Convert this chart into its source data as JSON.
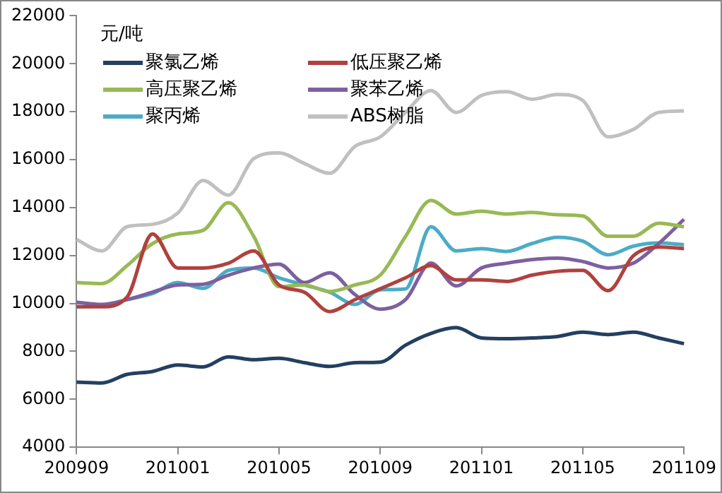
{
  "chart_data": {
    "type": "line",
    "ylabel": "元/吨",
    "categories": [
      "200909",
      null,
      null,
      null,
      "201001",
      null,
      null,
      null,
      "201005",
      null,
      null,
      null,
      "201009",
      null,
      null,
      null,
      "201101",
      null,
      null,
      null,
      "201105",
      null,
      null,
      null,
      "201109"
    ],
    "series": [
      {
        "name": "聚氯乙烯",
        "color": "#243f60",
        "values": [
          6720,
          6680,
          7040,
          7160,
          7430,
          7350,
          7770,
          7650,
          7710,
          7530,
          7370,
          7530,
          7550,
          8260,
          8750,
          8990,
          8560,
          8530,
          8560,
          8620,
          8800,
          8700,
          8800,
          8560,
          8320
        ]
      },
      {
        "name": "低压聚乙烯",
        "color": "#b0413e",
        "values": [
          9860,
          9860,
          10270,
          12900,
          11480,
          11480,
          11680,
          12190,
          10770,
          10470,
          9660,
          10160,
          10610,
          11070,
          11580,
          10980,
          10980,
          10920,
          11180,
          11340,
          11380,
          10530,
          11990,
          12350,
          12290
        ]
      },
      {
        "name": "高压聚乙烯",
        "color": "#98b954",
        "values": [
          10870,
          10830,
          11580,
          12500,
          12900,
          13050,
          14200,
          12800,
          10700,
          10770,
          10500,
          10770,
          11180,
          12800,
          14300,
          13730,
          13850,
          13730,
          13800,
          13700,
          13650,
          12800,
          12800,
          13350,
          13200
        ]
      },
      {
        "name": "聚苯乙烯",
        "color": "#7d60a0",
        "values": [
          10050,
          9960,
          10160,
          10470,
          10770,
          10800,
          11180,
          11480,
          11640,
          10870,
          11280,
          10370,
          9760,
          10160,
          11680,
          10730,
          11480,
          11680,
          11830,
          11890,
          11750,
          11480,
          11680,
          12500,
          13510
        ]
      },
      {
        "name": "聚丙烯",
        "color": "#4bacc6",
        "values": [
          9860,
          9900,
          10160,
          10410,
          10870,
          10630,
          11380,
          11480,
          11070,
          10770,
          10470,
          9960,
          10570,
          10610,
          13200,
          12190,
          12290,
          12170,
          12500,
          12760,
          12600,
          12030,
          12390,
          12520,
          12450
        ]
      },
      {
        "name": "ABS树脂",
        "color": "#c0c0c0",
        "values": [
          12660,
          12190,
          13200,
          13300,
          13770,
          15130,
          14520,
          16040,
          16280,
          15840,
          15430,
          16550,
          16950,
          17970,
          18880,
          17970,
          18680,
          18840,
          18520,
          18720,
          18470,
          16950,
          17260,
          17970,
          18030
        ]
      }
    ],
    "ylim": [
      4000,
      22000
    ],
    "yticks": [
      4000,
      6000,
      8000,
      10000,
      12000,
      14000,
      16000,
      18000,
      20000,
      22000
    ],
    "grid": false,
    "legend": "top left",
    "marker": "none",
    "line_style": "solid"
  }
}
